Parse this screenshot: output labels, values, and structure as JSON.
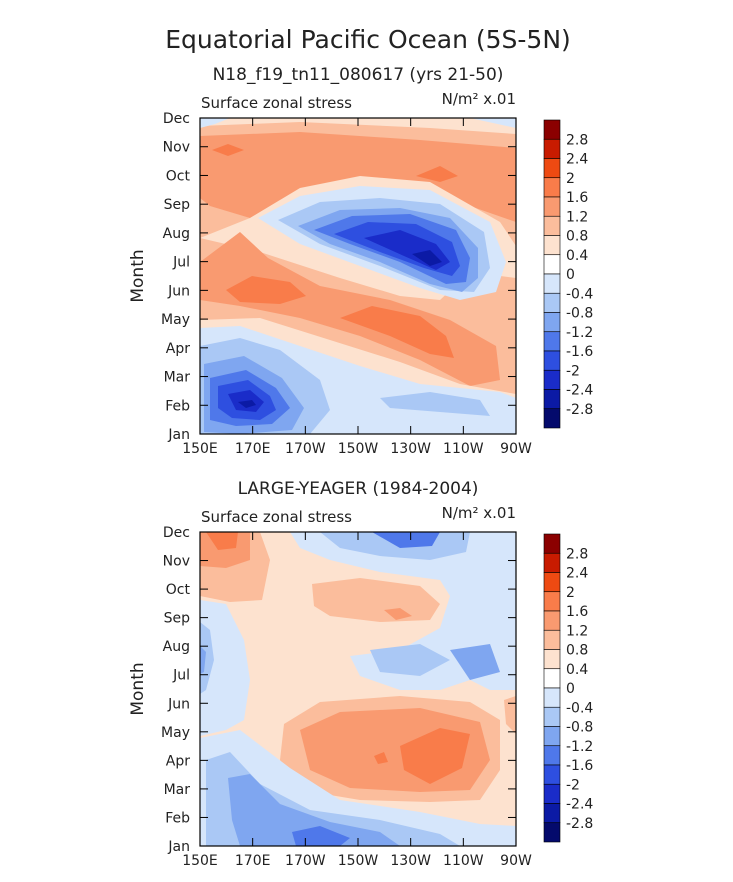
{
  "title": "Equatorial Pacific Ocean (5S-5N)",
  "colorbar": {
    "levels": [
      "2.8",
      "2.4",
      "2",
      "1.6",
      "1.2",
      "0.8",
      "0.4",
      "0",
      "-0.4",
      "-0.8",
      "-1.2",
      "-1.6",
      "-2",
      "-2.4",
      "-2.8"
    ],
    "colors": [
      "#8b0000",
      "#c81b00",
      "#ee4a12",
      "#f97c4a",
      "#f99a70",
      "#fbbd9c",
      "#fde2cf",
      "#ffffff",
      "#d6e6fb",
      "#aac8f5",
      "#7fa6f0",
      "#4f78ea",
      "#2e4fe0",
      "#1a2cc9",
      "#0b1aa5",
      "#040a6c"
    ]
  },
  "chart_data": [
    {
      "type": "heatmap",
      "subtitle": "N18_f19_tn11_080617 (yrs 21-50)",
      "variable_label": "Surface zonal stress",
      "units_label": "N/m² x.01",
      "xlabel": "",
      "ylabel": "Month",
      "x_ticks": [
        "150E",
        "170E",
        "170W",
        "150W",
        "130W",
        "110W",
        "90W"
      ],
      "y_ticks": [
        "Jan",
        "Feb",
        "Mar",
        "Apr",
        "May",
        "Jun",
        "Jul",
        "Aug",
        "Sep",
        "Oct",
        "Nov",
        "Dec"
      ],
      "x_range": [
        "150E",
        "90W"
      ],
      "grid": false,
      "features": [
        {
          "desc": "minimum",
          "x": "165E",
          "month": "Feb",
          "value": -2.8
        },
        {
          "desc": "minimum",
          "x": "127W",
          "month": "Jul",
          "value": -2.8
        },
        {
          "desc": "maximum",
          "x": "137W",
          "month": "May",
          "value": 1.6
        },
        {
          "desc": "maximum",
          "x": "165E",
          "month": "Jun",
          "value": 1.6
        },
        {
          "desc": "maximum",
          "x": "122W",
          "month": "Oct",
          "value": 1.6
        },
        {
          "desc": "maximum",
          "x": "157E",
          "month": "Nov",
          "value": 1.6
        }
      ]
    },
    {
      "type": "heatmap",
      "subtitle": "LARGE-YEAGER (1984-2004)",
      "variable_label": "Surface zonal stress",
      "units_label": "N/m² x.01",
      "xlabel": "",
      "ylabel": "Month",
      "x_ticks": [
        "150E",
        "170E",
        "170W",
        "150W",
        "130W",
        "110W",
        "90W"
      ],
      "y_ticks": [
        "Jan",
        "Feb",
        "Mar",
        "Apr",
        "May",
        "Jun",
        "Jul",
        "Aug",
        "Sep",
        "Oct",
        "Nov",
        "Dec"
      ],
      "x_range": [
        "150E",
        "90W"
      ],
      "grid": false,
      "features": [
        {
          "desc": "maximum",
          "x": "160E",
          "month": "Dec",
          "value": 2.0
        },
        {
          "desc": "maximum",
          "x": "125W",
          "month": "Apr",
          "value": 1.6
        },
        {
          "desc": "minimum",
          "x": "140W",
          "month": "Dec",
          "value": -1.6
        },
        {
          "desc": "minimum",
          "x": "110W",
          "month": "Jul",
          "value": -1.2
        },
        {
          "desc": "minimum",
          "x": "170W",
          "month": "Jan",
          "value": -1.2
        }
      ]
    }
  ]
}
